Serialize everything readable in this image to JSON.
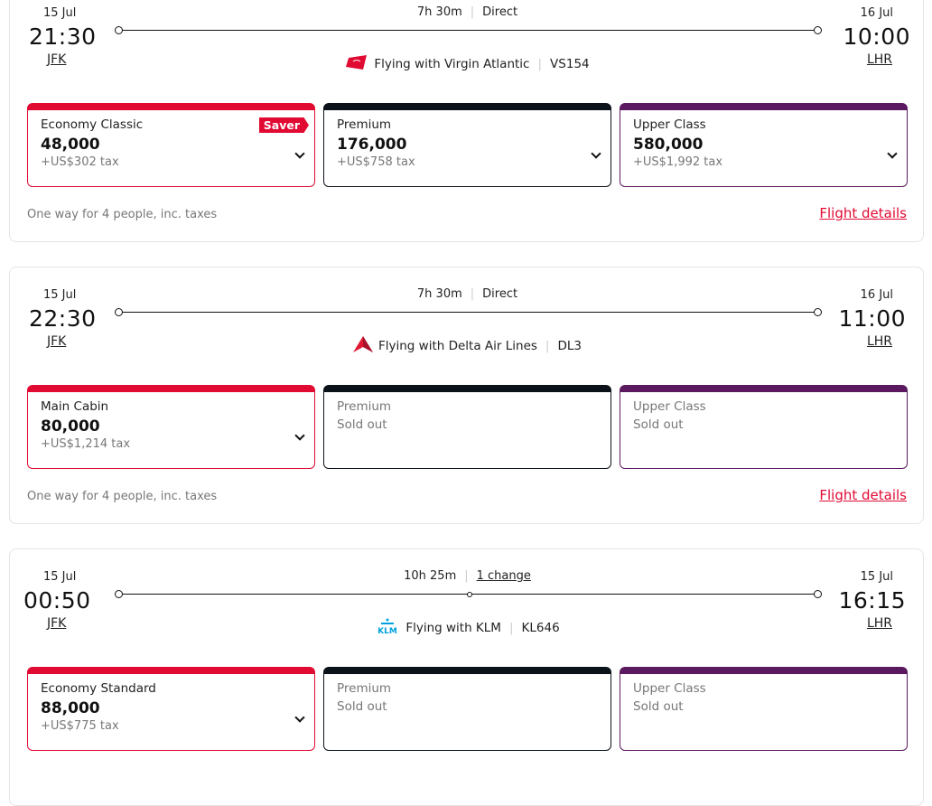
{
  "colors": {
    "economy": "#e10a33",
    "premium": "#0b1219",
    "upper": "#5b1a5f",
    "link": "#e10a33"
  },
  "flights": [
    {
      "dep_date": "15 Jul",
      "dep_time": "21:30",
      "dep_airport": "JFK",
      "arr_date": "16 Jul",
      "arr_time": "10:00",
      "arr_airport": "LHR",
      "duration": "7h 30m",
      "stops": "Direct",
      "stops_link": false,
      "carrier_icon": "virgin-atlantic-logo",
      "carrier": "Flying with Virgin Atlantic",
      "flight_no": "VS154",
      "fares": [
        {
          "cabin": "Economy Classic",
          "points": "48,000",
          "tax": "+US$302 tax",
          "badge": "Saver",
          "sold_out": false
        },
        {
          "cabin": "Premium",
          "points": "176,000",
          "tax": "+US$758 tax",
          "sold_out": false
        },
        {
          "cabin": "Upper Class",
          "points": "580,000",
          "tax": "+US$1,992 tax",
          "sold_out": false
        }
      ],
      "note": "One way for 4 people, inc. taxes",
      "details": "Flight details"
    },
    {
      "dep_date": "15 Jul",
      "dep_time": "22:30",
      "dep_airport": "JFK",
      "arr_date": "16 Jul",
      "arr_time": "11:00",
      "arr_airport": "LHR",
      "duration": "7h 30m",
      "stops": "Direct",
      "stops_link": false,
      "carrier_icon": "delta-logo",
      "carrier": "Flying with Delta Air Lines",
      "flight_no": "DL3",
      "fares": [
        {
          "cabin": "Main Cabin",
          "points": "80,000",
          "tax": "+US$1,214 tax",
          "sold_out": false
        },
        {
          "cabin": "Premium",
          "status": "Sold out",
          "sold_out": true
        },
        {
          "cabin": "Upper Class",
          "status": "Sold out",
          "sold_out": true
        }
      ],
      "note": "One way for 4 people, inc. taxes",
      "details": "Flight details"
    },
    {
      "dep_date": "15 Jul",
      "dep_time": "00:50",
      "dep_airport": "JFK",
      "arr_date": "15 Jul",
      "arr_time": "16:15",
      "arr_airport": "LHR",
      "duration": "10h 25m",
      "stops": "1 change",
      "stops_link": true,
      "carrier_icon": "klm-logo",
      "carrier": "Flying with KLM",
      "flight_no": "KL646",
      "fares": [
        {
          "cabin": "Economy Standard",
          "points": "88,000",
          "tax": "+US$775 tax",
          "sold_out": false
        },
        {
          "cabin": "Premium",
          "status": "Sold out",
          "sold_out": true
        },
        {
          "cabin": "Upper Class",
          "status": "Sold out",
          "sold_out": true
        }
      ]
    }
  ]
}
